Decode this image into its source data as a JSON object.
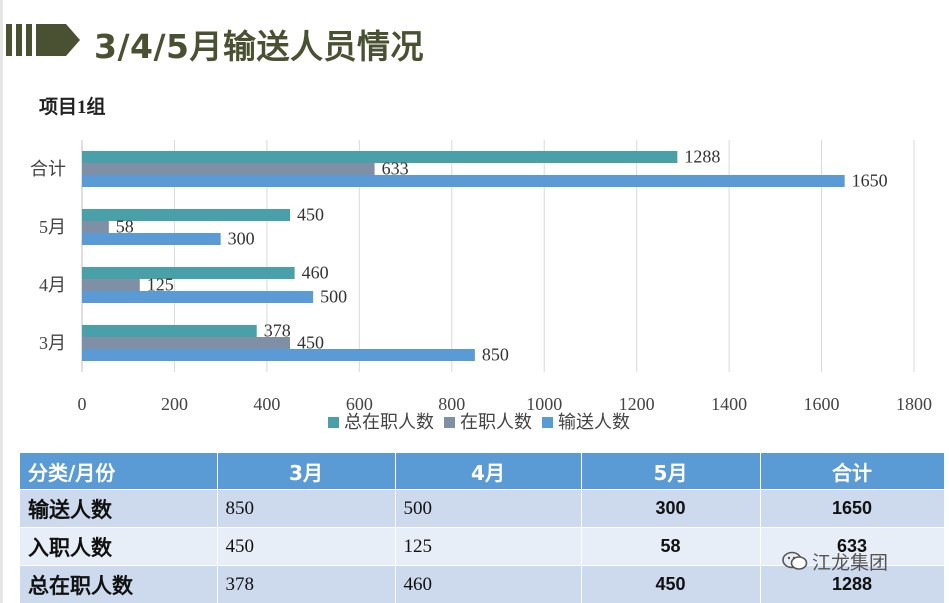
{
  "title": "3/4/5月输送人员情况",
  "subtitle": "项目1组",
  "chart_data": {
    "type": "bar",
    "orientation": "horizontal",
    "categories": [
      "合计",
      "5月",
      "4月",
      "3月"
    ],
    "series": [
      {
        "name": "总在职人数",
        "color": "#4aa0a8",
        "values": [
          1288,
          450,
          460,
          378
        ]
      },
      {
        "name": "在职人数",
        "color": "#7f8fa6",
        "values": [
          633,
          58,
          125,
          450
        ]
      },
      {
        "name": "输送人数",
        "color": "#5b9bd5",
        "values": [
          1650,
          300,
          500,
          850
        ]
      }
    ],
    "xlim": [
      0,
      1800
    ],
    "xticks": [
      0,
      200,
      400,
      600,
      800,
      1000,
      1200,
      1400,
      1600,
      1800
    ],
    "grid": true,
    "legend_position": "bottom"
  },
  "table": {
    "headers": [
      "分类/月份",
      "3月",
      "4月",
      "5月",
      "合计"
    ],
    "rows": [
      {
        "label": "输送人数",
        "cells": [
          "850",
          "500",
          "300",
          "1650"
        ]
      },
      {
        "label": "入职人数",
        "cells": [
          "450",
          "125",
          "58",
          "633"
        ]
      },
      {
        "label": "总在职人数",
        "cells": [
          "378",
          "460",
          "450",
          "1288"
        ]
      }
    ]
  },
  "watermark": "江龙集团",
  "colors": {
    "title": "#4a5132",
    "table_header": "#5b9bd5"
  }
}
